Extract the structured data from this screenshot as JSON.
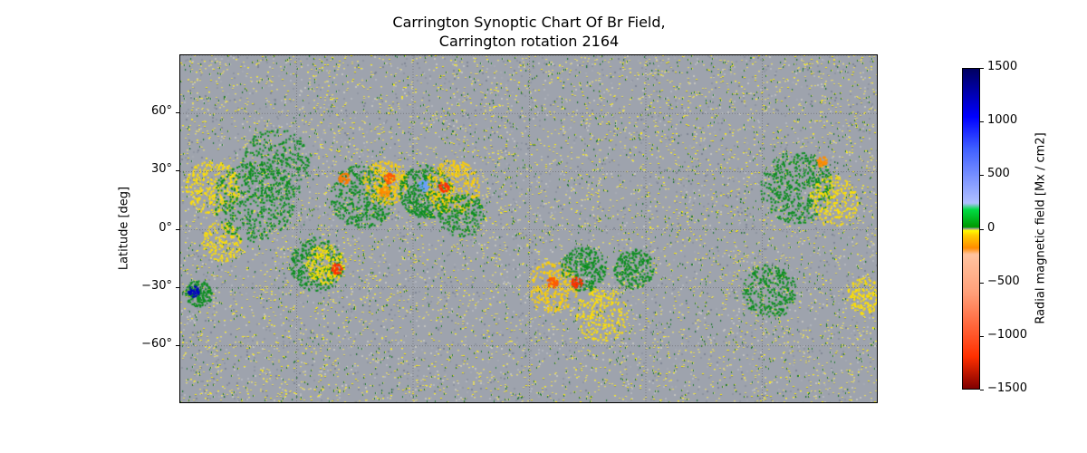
{
  "chart_data": {
    "type": "heatmap",
    "title_lines": [
      "Carrington Synoptic Chart Of Br Field,",
      "Carrington rotation 2164"
    ],
    "ylabel": "Latitude [deg]",
    "yticks": [
      {
        "value": 60,
        "label": "60°"
      },
      {
        "value": 30,
        "label": "30°"
      },
      {
        "value": 0,
        "label": "0°"
      },
      {
        "value": -30,
        "label": "−30°"
      },
      {
        "value": -60,
        "label": "−60°"
      }
    ],
    "ylim": [
      -90,
      90
    ],
    "grid": true,
    "colorbar": {
      "label": "Radial magnetic field [Mx / cm2]",
      "range": [
        -1500,
        1500
      ],
      "ticks": [
        {
          "value": 1500,
          "label": "1500"
        },
        {
          "value": 1000,
          "label": "1000"
        },
        {
          "value": 500,
          "label": "500"
        },
        {
          "value": 0,
          "label": "0"
        },
        {
          "value": -500,
          "label": "−500"
        },
        {
          "value": -1000,
          "label": "−1000"
        },
        {
          "value": -1500,
          "label": "−1500"
        }
      ],
      "colors": [
        "#800000",
        "#ff3000",
        "#ffa07a",
        "#ffc4a0",
        "#ff8c00",
        "#ffd000",
        "#ffff00",
        "#a0a0a0",
        "#009900",
        "#00dd44",
        "#b0c0ff",
        "#4060ff",
        "#0000ff",
        "#000060"
      ]
    }
  }
}
